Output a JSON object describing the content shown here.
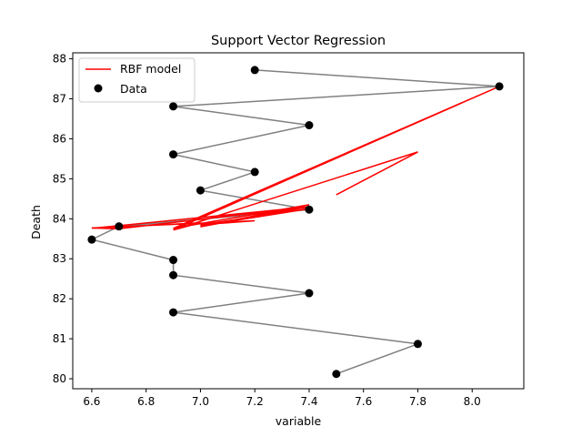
{
  "chart_data": {
    "type": "line",
    "title": "Support Vector Regression",
    "xlabel": "variable",
    "ylabel": "Death",
    "xlim": [
      6.53,
      8.19
    ],
    "ylim": [
      79.75,
      88.15
    ],
    "xticks": [
      6.6,
      6.8,
      7.0,
      7.2,
      7.4,
      7.6,
      7.8,
      8.0
    ],
    "xtick_labels": [
      "6.6",
      "6.8",
      "7.0",
      "7.2",
      "7.4",
      "7.6",
      "7.8",
      "8.0"
    ],
    "yticks": [
      80,
      81,
      82,
      83,
      84,
      85,
      86,
      87,
      88
    ],
    "ytick_labels": [
      "80",
      "81",
      "82",
      "83",
      "84",
      "85",
      "86",
      "87",
      "88"
    ],
    "grid": false,
    "legend_position": "upper-left",
    "series": [
      {
        "name": "Data",
        "kind": "scatter_with_path",
        "color": "#000000",
        "path_color": "#808080",
        "x": [
          7.2,
          8.1,
          6.9,
          7.4,
          6.9,
          7.2,
          7.0,
          7.4,
          6.7,
          6.6,
          6.9,
          6.9,
          7.4,
          6.9,
          7.8,
          7.5
        ],
        "y": [
          87.72,
          87.31,
          86.81,
          86.34,
          85.61,
          85.17,
          84.71,
          84.23,
          83.81,
          83.48,
          82.97,
          82.59,
          82.14,
          81.66,
          80.87,
          80.12
        ]
      },
      {
        "name": "RBF model",
        "kind": "line",
        "color": "#ff0000",
        "x": [
          7.5,
          7.8,
          6.9,
          8.1,
          6.9,
          8.1,
          6.9,
          7.4,
          7.0,
          7.4,
          7.0,
          7.4,
          7.0,
          7.2,
          6.6,
          6.7,
          7.4,
          6.6,
          7.0,
          6.9
        ],
        "y": [
          84.6,
          85.67,
          83.72,
          87.31,
          83.75,
          87.31,
          83.76,
          84.35,
          83.8,
          84.3,
          83.82,
          84.25,
          83.85,
          83.95,
          83.77,
          83.75,
          84.3,
          83.76,
          83.9,
          83.72
        ]
      }
    ]
  }
}
